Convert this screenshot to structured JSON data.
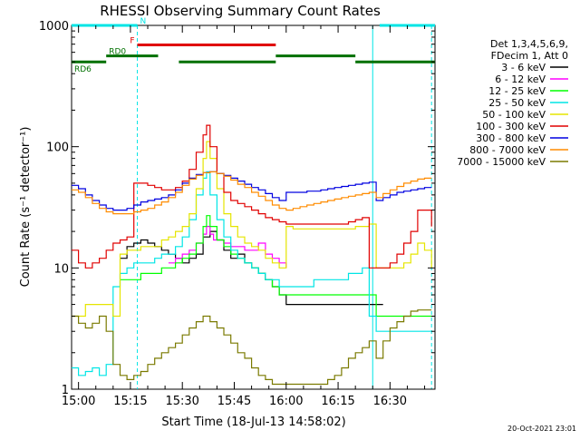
{
  "chart_data": {
    "type": "line",
    "title": "RHESSI Observing Summary Count Rates",
    "xlabel": "Start Time (18-Jul-13 14:58:02)",
    "ylabel": "Count Rate (s⁻¹ detector⁻¹)",
    "yscale": "log",
    "xlim": [
      0,
      105
    ],
    "ylim": [
      1,
      1000
    ],
    "x_tick_labels": [
      "15:00",
      "15:15",
      "15:30",
      "15:45",
      "16:00",
      "16:15",
      "16:30"
    ],
    "x_ticks": [
      2,
      17,
      32,
      47,
      62,
      77,
      92
    ],
    "y_ticks": [
      1,
      10,
      100,
      1000
    ],
    "y_tick_labels": [
      "1",
      "10",
      "100",
      "1000"
    ],
    "legend_position": "right",
    "legend_header": [
      "Det 1,3,4,5,6,9,",
      "FDecim 1, Att 0"
    ],
    "timestamp": "20-Oct-2021 23:01",
    "flags": [
      {
        "label": "N",
        "color": "#00e5e5",
        "level": 1000,
        "segments": [
          [
            0,
            19
          ],
          [
            89,
            105
          ]
        ]
      },
      {
        "label": "F",
        "color": "#e00000",
        "level": 690,
        "segments": [
          [
            19,
            59
          ]
        ]
      },
      {
        "label": "RD0",
        "color": "#007000",
        "level": 560,
        "segments": [
          [
            10,
            25
          ],
          [
            59,
            82
          ]
        ]
      },
      {
        "label": "RD6",
        "color": "#007000",
        "level": 500,
        "segments": [
          [
            0,
            10
          ],
          [
            31,
            59
          ],
          [
            82,
            105
          ]
        ]
      }
    ],
    "vlines": [
      {
        "x": 19,
        "color": "#00e5e5",
        "dashed": true
      },
      {
        "x": 87,
        "color": "#00e5e5",
        "dashed": false
      },
      {
        "x": 104,
        "color": "#00e5e5",
        "dashed": true
      }
    ],
    "series": [
      {
        "name": "3 - 6 keV",
        "color": "#000000",
        "x": [
          14,
          16,
          18,
          20,
          22,
          24,
          26,
          28,
          30,
          32,
          34,
          36,
          38,
          40,
          42,
          44,
          46,
          48,
          50,
          52,
          54,
          56,
          58,
          60,
          62,
          64,
          66,
          68,
          70,
          72,
          74,
          76,
          78,
          80,
          82,
          84,
          86,
          88,
          90
        ],
        "y": [
          12,
          15,
          16,
          17,
          16,
          15,
          14,
          13,
          12,
          11,
          12,
          13,
          18,
          20,
          17,
          14,
          12,
          13,
          11,
          10,
          9,
          8,
          7,
          6,
          5,
          5,
          5,
          5,
          5,
          5,
          5,
          5,
          5,
          5,
          5,
          5,
          5,
          5,
          5
        ]
      },
      {
        "name": "6 - 12 keV",
        "color": "#ff00ff",
        "x": [
          28,
          30,
          32,
          34,
          36,
          38,
          39,
          40,
          41,
          42,
          44,
          46,
          48,
          50,
          52,
          54,
          56,
          58,
          60,
          62
        ],
        "y": [
          11,
          12,
          13,
          14,
          16,
          19,
          22,
          19,
          17,
          17,
          16,
          15,
          15,
          14,
          14,
          16,
          13,
          12,
          11,
          10
        ]
      },
      {
        "name": "12 - 25 keV",
        "color": "#00ff00",
        "x": [
          14,
          16,
          18,
          20,
          22,
          24,
          26,
          28,
          30,
          32,
          34,
          36,
          38,
          39,
          40,
          42,
          44,
          46,
          48,
          50,
          52,
          54,
          56,
          58,
          60,
          62,
          64,
          66,
          68,
          70,
          72,
          74,
          76,
          78,
          80,
          82,
          84,
          86,
          88,
          90,
          92,
          94,
          96,
          98,
          100,
          102,
          104
        ],
        "y": [
          8,
          8,
          8,
          9,
          9,
          9,
          10,
          10,
          11,
          12,
          13,
          16,
          22,
          27,
          22,
          17,
          15,
          13,
          12,
          11,
          10,
          9,
          8,
          7,
          6,
          6,
          6,
          6,
          6,
          6,
          6,
          6,
          6,
          6,
          6,
          6,
          6,
          6,
          4,
          4,
          4,
          4,
          4,
          4,
          4,
          4,
          4
        ]
      },
      {
        "name": "25 - 50 keV",
        "color": "#00e5e5",
        "x": [
          0,
          2,
          4,
          6,
          8,
          10,
          12,
          14,
          16,
          18,
          20,
          22,
          24,
          26,
          28,
          30,
          32,
          34,
          36,
          38,
          39,
          40,
          42,
          44,
          46,
          48,
          50,
          52,
          54,
          56,
          58,
          60,
          62,
          64,
          66,
          68,
          70,
          72,
          74,
          76,
          78,
          80,
          82,
          84,
          86,
          88,
          90,
          92,
          94,
          96,
          98,
          100,
          102,
          104
        ],
        "y": [
          1.5,
          1.3,
          1.4,
          1.5,
          1.3,
          1.6,
          7,
          9,
          10,
          11,
          11,
          11,
          12,
          13,
          13,
          15,
          18,
          25,
          40,
          55,
          62,
          40,
          25,
          18,
          14,
          12,
          11,
          10,
          9,
          8,
          8,
          7,
          7,
          7,
          7,
          7,
          8,
          8,
          8,
          8,
          8,
          9,
          9,
          10,
          4,
          3,
          3,
          3,
          3,
          3,
          3,
          3,
          3,
          3
        ]
      },
      {
        "name": "50 - 100 keV",
        "color": "#e5e500",
        "x": [
          0,
          4,
          8,
          12,
          14,
          16,
          18,
          20,
          22,
          24,
          26,
          28,
          30,
          32,
          34,
          36,
          38,
          39,
          40,
          42,
          44,
          46,
          48,
          50,
          52,
          54,
          56,
          58,
          60,
          62,
          64,
          66,
          68,
          70,
          72,
          74,
          76,
          78,
          80,
          82,
          84,
          86,
          88,
          90,
          92,
          94,
          96,
          98,
          100,
          102,
          104
        ],
        "y": [
          4,
          5,
          5,
          4,
          13,
          14,
          14,
          15,
          15,
          15,
          17,
          18,
          20,
          22,
          28,
          45,
          80,
          110,
          80,
          45,
          28,
          22,
          18,
          16,
          15,
          14,
          12,
          11,
          10,
          22,
          21,
          21,
          21,
          21,
          21,
          21,
          21,
          21,
          21,
          22,
          22,
          23,
          10,
          10,
          10,
          10,
          11,
          13,
          16,
          14,
          10
        ]
      },
      {
        "name": "100 - 300 keV",
        "color": "#e00000",
        "x": [
          0,
          2,
          4,
          6,
          8,
          10,
          12,
          14,
          16,
          18,
          20,
          22,
          24,
          26,
          28,
          30,
          32,
          34,
          36,
          38,
          39,
          40,
          42,
          44,
          46,
          48,
          50,
          52,
          54,
          56,
          58,
          60,
          62,
          64,
          66,
          68,
          70,
          72,
          74,
          76,
          78,
          80,
          82,
          84,
          86,
          88,
          90,
          92,
          94,
          96,
          98,
          100,
          102,
          104
        ],
        "y": [
          14,
          11,
          10,
          11,
          12,
          14,
          16,
          17,
          18,
          50,
          50,
          48,
          46,
          44,
          44,
          46,
          52,
          65,
          90,
          125,
          150,
          100,
          60,
          42,
          36,
          34,
          32,
          30,
          28,
          26,
          25,
          24,
          23,
          23,
          23,
          23,
          23,
          23,
          23,
          23,
          23,
          24,
          25,
          26,
          10,
          10,
          10,
          11,
          13,
          16,
          20,
          30,
          30,
          22
        ]
      },
      {
        "name": "300 - 800 keV",
        "color": "#0000e0",
        "x": [
          0,
          2,
          4,
          6,
          8,
          10,
          12,
          14,
          16,
          18,
          20,
          22,
          24,
          26,
          28,
          30,
          32,
          34,
          36,
          38,
          40,
          42,
          44,
          46,
          48,
          50,
          52,
          54,
          56,
          58,
          60,
          62,
          64,
          66,
          68,
          70,
          72,
          74,
          76,
          78,
          80,
          82,
          84,
          86,
          88,
          90,
          92,
          94,
          96,
          98,
          100,
          102,
          104
        ],
        "y": [
          48,
          45,
          40,
          36,
          33,
          31,
          30,
          30,
          31,
          33,
          35,
          36,
          37,
          38,
          40,
          44,
          50,
          55,
          59,
          61,
          62,
          60,
          58,
          55,
          52,
          49,
          46,
          44,
          41,
          38,
          36,
          42,
          42,
          42,
          43,
          43,
          44,
          45,
          46,
          47,
          48,
          49,
          50,
          51,
          36,
          38,
          40,
          42,
          43,
          44,
          45,
          46,
          46
        ]
      },
      {
        "name": "800 - 7000 keV",
        "color": "#ff8c00",
        "x": [
          0,
          2,
          4,
          6,
          8,
          10,
          12,
          14,
          16,
          18,
          20,
          22,
          24,
          26,
          28,
          30,
          32,
          34,
          36,
          38,
          40,
          42,
          44,
          46,
          48,
          50,
          52,
          54,
          56,
          58,
          60,
          62,
          64,
          66,
          68,
          70,
          72,
          74,
          76,
          78,
          80,
          82,
          84,
          86,
          88,
          90,
          92,
          94,
          96,
          98,
          100,
          102,
          104
        ],
        "y": [
          44,
          42,
          38,
          34,
          31,
          29,
          28,
          28,
          28,
          29,
          30,
          31,
          33,
          35,
          38,
          42,
          48,
          54,
          58,
          61,
          62,
          60,
          57,
          53,
          49,
          46,
          42,
          39,
          36,
          33,
          31,
          30,
          31,
          32,
          33,
          34,
          35,
          36,
          37,
          38,
          39,
          40,
          41,
          42,
          38,
          41,
          44,
          47,
          50,
          52,
          54,
          55,
          55
        ]
      },
      {
        "name": "7000 - 15000 keV",
        "color": "#7a7a00",
        "x": [
          0,
          2,
          4,
          6,
          8,
          10,
          12,
          14,
          16,
          18,
          20,
          22,
          24,
          26,
          28,
          30,
          32,
          34,
          36,
          38,
          40,
          42,
          44,
          46,
          48,
          50,
          52,
          54,
          56,
          58,
          60,
          62,
          64,
          66,
          68,
          70,
          72,
          74,
          76,
          78,
          80,
          82,
          84,
          86,
          88,
          90,
          92,
          94,
          96,
          98,
          100,
          102,
          104
        ],
        "y": [
          4,
          3.5,
          3.2,
          3.5,
          4,
          3,
          1.6,
          1.3,
          1.2,
          1.3,
          1.4,
          1.6,
          1.8,
          2,
          2.2,
          2.4,
          2.8,
          3.2,
          3.6,
          4,
          3.6,
          3.2,
          2.8,
          2.4,
          2,
          1.8,
          1.5,
          1.3,
          1.2,
          1.1,
          1.1,
          1.1,
          1.1,
          1.1,
          1.1,
          1.1,
          1.1,
          1.2,
          1.3,
          1.5,
          1.8,
          2,
          2.2,
          2.5,
          1.8,
          2.5,
          3.2,
          3.6,
          4,
          4.4,
          4.5,
          4.5,
          4.5
        ]
      }
    ]
  }
}
